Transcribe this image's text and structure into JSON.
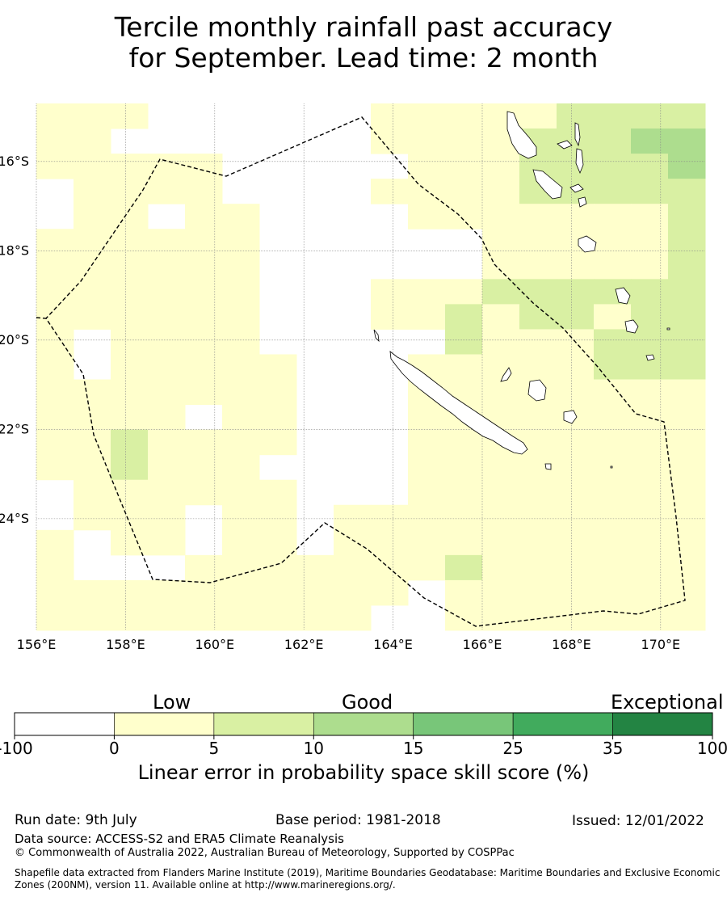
{
  "title": {
    "line1": "Tercile monthly rainfall past accuracy",
    "line2": "for September. Lead time: 2 month"
  },
  "map": {
    "lon_range": [
      156,
      171
    ],
    "lat_range": [
      -26.5,
      -14.7
    ],
    "lon_ticks": [
      "156°E",
      "158°E",
      "160°E",
      "162°E",
      "164°E",
      "166°E",
      "168°E",
      "170°E"
    ],
    "lat_ticks": [
      "16°S",
      "18°S",
      "20°S",
      "22°S",
      "24°S"
    ],
    "grid": true,
    "boundary": "dashed EEZ outline",
    "landmasses": [
      "New Caledonia",
      "Loyalty Islands",
      "Vanuatu"
    ]
  },
  "colorbar": {
    "category_labels": [
      "Low",
      "Good",
      "Exceptional"
    ],
    "tick_labels": [
      "-100",
      "0",
      "5",
      "10",
      "15",
      "25",
      "35",
      "100"
    ],
    "bins": [
      {
        "range": "-100 to 0",
        "color": "#ffffff"
      },
      {
        "range": "0 to 5",
        "color": "#ffffcc"
      },
      {
        "range": "5 to 10",
        "color": "#d9f0a3"
      },
      {
        "range": "10 to 15",
        "color": "#addd8e"
      },
      {
        "range": "15 to 25",
        "color": "#78c679"
      },
      {
        "range": "25 to 35",
        "color": "#41ab5d"
      },
      {
        "range": "35 to 100",
        "color": "#238443"
      }
    ],
    "axis_label": "Linear error in probability space skill score (%)"
  },
  "footer": {
    "run_date": "Run date: 9th July",
    "base_period": "Base period: 1981-2018",
    "issued": "Issued: 12/01/2022",
    "data_source": "Data source: ACCESS-S2 and ERA5 Climate Reanalysis",
    "copyright": "© Commonwealth of Australia 2022, Australian Bureau of Meteorology, Supported by COSPPac",
    "shapefile": "Shapefile data extracted from Flanders Marine Institute (2019), Maritime Boundaries Geodatabase: Maritime Boundaries and Exclusive Economic Zones (200NM), version 11. Available online at http://www.marineregions.org/."
  }
}
